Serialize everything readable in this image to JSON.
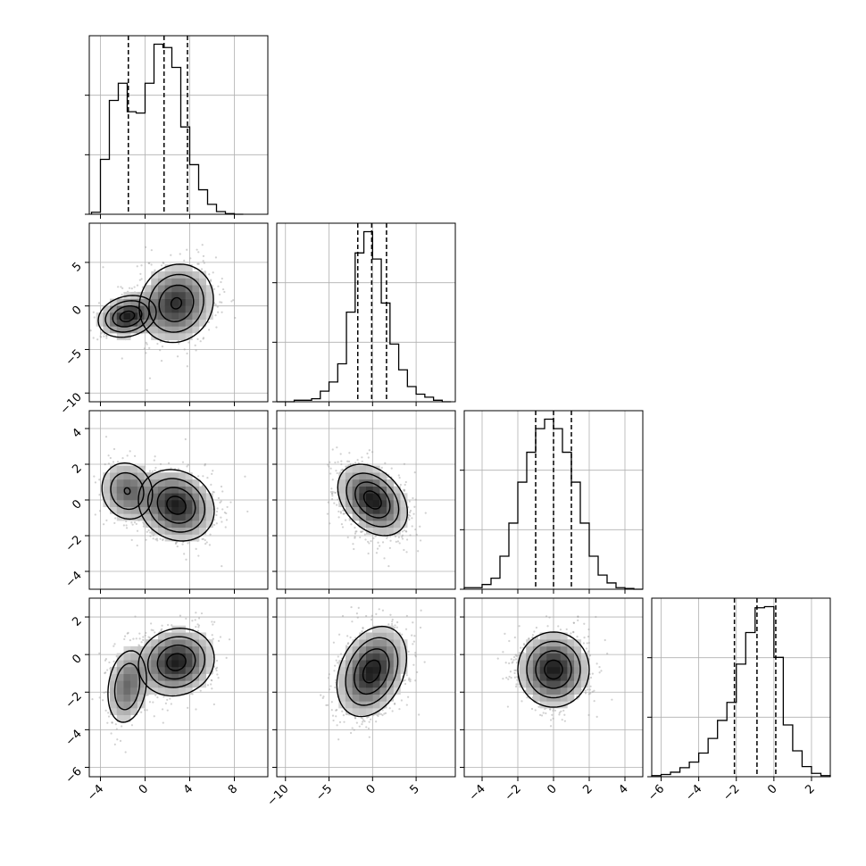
{
  "chart_data": {
    "type": "corner",
    "grid": true,
    "variables": [
      {
        "range": [
          -5,
          11
        ],
        "ticks": [
          -4,
          0,
          4,
          8
        ],
        "tick_labels": [
          "−4",
          "0",
          "4",
          "8"
        ],
        "quantiles": [
          -1.5,
          1.7,
          3.8
        ],
        "hist_edges": [
          -4.8,
          -4.0,
          -3.2,
          -2.4,
          -1.6,
          -0.8,
          0.0,
          0.8,
          1.6,
          2.4,
          3.2,
          4.0,
          4.8,
          5.6,
          6.4,
          7.2,
          8.0,
          8.8
        ],
        "hist_counts": [
          0.3,
          8.3,
          17.2,
          19.8,
          15.5,
          15.3,
          19.8,
          25.7,
          25.2,
          22.2,
          13.2,
          7.5,
          3.7,
          1.5,
          0.4,
          0.1,
          0
        ]
      },
      {
        "range": [
          -11,
          9.5
        ],
        "ticks": [
          -10,
          -5,
          0,
          5
        ],
        "tick_labels": [
          "−10",
          "−5",
          "0",
          "5"
        ],
        "quantiles": [
          -1.7,
          -0.1,
          1.6
        ],
        "hist_edges": [
          -11,
          -10,
          -9,
          -8,
          -7,
          -6,
          -5,
          -4,
          -3,
          -2,
          -1,
          0,
          1,
          2,
          3,
          4,
          5,
          6,
          7,
          8,
          9
        ],
        "hist_counts": [
          0,
          0,
          0.1,
          0.1,
          0.2,
          0.7,
          1.3,
          2.5,
          5.9,
          9.8,
          11.2,
          9.4,
          6.5,
          3.8,
          2.1,
          1.0,
          0.5,
          0.3,
          0.1,
          0
        ]
      },
      {
        "range": [
          -5,
          5
        ],
        "ticks": [
          -4,
          -2,
          0,
          2,
          4
        ],
        "tick_labels": [
          "−4",
          "−2",
          "0",
          "2",
          "4"
        ],
        "quantiles": [
          -1.0,
          0.0,
          1.0
        ],
        "hist_edges": [
          -5.0,
          -4.5,
          -4.0,
          -3.5,
          -3.0,
          -2.5,
          -2.0,
          -1.5,
          -1.0,
          -0.5,
          0.0,
          0.5,
          1.0,
          1.5,
          2.0,
          2.5,
          3.0,
          3.5,
          4.0,
          4.5,
          5.0
        ],
        "hist_counts": [
          0.1,
          0.1,
          0.3,
          0.7,
          2.1,
          4.2,
          6.8,
          8.7,
          10.2,
          10.8,
          10.2,
          8.7,
          6.8,
          4.2,
          2.1,
          0.9,
          0.4,
          0.1,
          0.05,
          0
        ]
      },
      {
        "range": [
          -6.5,
          3
        ],
        "ticks": [
          -6,
          -4,
          -2,
          0,
          2
        ],
        "tick_labels": [
          "−6",
          "−4",
          "−2",
          "0",
          "2"
        ],
        "quantiles": [
          -2.1,
          -0.9,
          0.1
        ],
        "hist_edges": [
          -6.5,
          -6.0,
          -5.5,
          -5.0,
          -4.5,
          -4.0,
          -3.5,
          -3.0,
          -2.5,
          -2.0,
          -1.5,
          -1.0,
          -0.5,
          0.0,
          0.5,
          1.0,
          1.5,
          2.0,
          2.5,
          3.0
        ],
        "hist_counts": [
          0.1,
          0.2,
          0.4,
          0.8,
          1.3,
          2.1,
          3.4,
          5.0,
          6.6,
          10.0,
          12.8,
          15.0,
          15.1,
          10.6,
          4.6,
          2.3,
          0.9,
          0.3,
          0.1
        ]
      }
    ],
    "pairs": [
      {
        "x": 0,
        "y": 1,
        "components": [
          {
            "w": 0.3,
            "mu": [
              -1.6,
              -1.2
            ],
            "sd": [
              1.3,
              1.2
            ],
            "rho": 0.2
          },
          {
            "w": 0.7,
            "mu": [
              2.8,
              0.3
            ],
            "sd": [
              1.7,
              2.3
            ],
            "rho": 0.1
          }
        ]
      },
      {
        "x": 0,
        "y": 2,
        "components": [
          {
            "w": 0.3,
            "mu": [
              -1.6,
              0.5
            ],
            "sd": [
              1.3,
              0.9
            ],
            "rho": -0.1
          },
          {
            "w": 0.7,
            "mu": [
              2.8,
              -0.3
            ],
            "sd": [
              1.7,
              1.0
            ],
            "rho": -0.15
          }
        ]
      },
      {
        "x": 1,
        "y": 2,
        "components": [
          {
            "w": 1.0,
            "mu": [
              0,
              0
            ],
            "sd": [
              2.0,
              1.0
            ],
            "rho": -0.35
          }
        ]
      },
      {
        "x": 0,
        "y": 3,
        "components": [
          {
            "w": 0.3,
            "mu": [
              -1.6,
              -1.7
            ],
            "sd": [
              1.0,
              1.1
            ],
            "rho": 0.2
          },
          {
            "w": 0.7,
            "mu": [
              2.8,
              -0.4
            ],
            "sd": [
              1.7,
              0.9
            ],
            "rho": 0.1
          }
        ]
      },
      {
        "x": 1,
        "y": 3,
        "components": [
          {
            "w": 1.0,
            "mu": [
              -0.1,
              -0.9
            ],
            "sd": [
              2.0,
              1.2
            ],
            "rho": 0.3
          }
        ]
      },
      {
        "x": 2,
        "y": 3,
        "components": [
          {
            "w": 1.0,
            "mu": [
              0,
              -0.8
            ],
            "sd": [
              1.0,
              1.0
            ],
            "rho": 0.0
          }
        ]
      }
    ],
    "contour_levels": [
      0.5,
      1.0,
      1.5,
      2.0
    ]
  }
}
